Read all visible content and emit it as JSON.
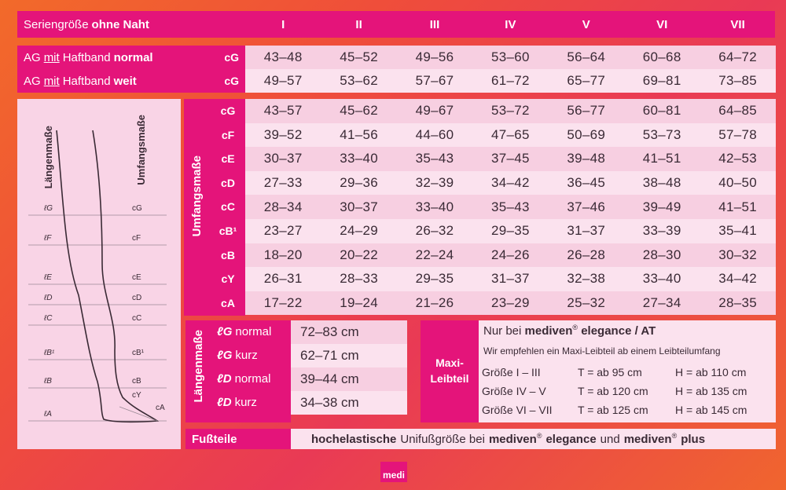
{
  "header": {
    "title_prefix": "Seriengröße",
    "title_bold": "ohne Naht",
    "sizes": [
      "I",
      "II",
      "III",
      "IV",
      "V",
      "VI",
      "VII"
    ]
  },
  "ag_rows": [
    {
      "prefix": "AG",
      "mit": "mit",
      "text": "Haftband",
      "bold": "normal",
      "code": "cG",
      "values": [
        "43–48",
        "45–52",
        "49–56",
        "53–60",
        "56–64",
        "60–68",
        "64–72"
      ]
    },
    {
      "prefix": "AG",
      "mit": "mit",
      "text": "Haftband",
      "bold": "weit",
      "code": "cG",
      "values": [
        "49–57",
        "53–62",
        "57–67",
        "61–72",
        "65–77",
        "69–81",
        "73–85"
      ]
    }
  ],
  "umfang": {
    "label": "Umfangsmaße",
    "rows": [
      {
        "code": "cG",
        "values": [
          "43–57",
          "45–62",
          "49–67",
          "53–72",
          "56–77",
          "60–81",
          "64–85"
        ]
      },
      {
        "code": "cF",
        "values": [
          "39–52",
          "41–56",
          "44–60",
          "47–65",
          "50–69",
          "53–73",
          "57–78"
        ]
      },
      {
        "code": "cE",
        "values": [
          "30–37",
          "33–40",
          "35–43",
          "37–45",
          "39–48",
          "41–51",
          "42–53"
        ]
      },
      {
        "code": "cD",
        "values": [
          "27–33",
          "29–36",
          "32–39",
          "34–42",
          "36–45",
          "38–48",
          "40–50"
        ]
      },
      {
        "code": "cC",
        "values": [
          "28–34",
          "30–37",
          "33–40",
          "35–43",
          "37–46",
          "39–49",
          "41–51"
        ]
      },
      {
        "code": "cB¹",
        "values": [
          "23–27",
          "24–29",
          "26–32",
          "29–35",
          "31–37",
          "33–39",
          "35–41"
        ]
      },
      {
        "code": "cB",
        "values": [
          "18–20",
          "20–22",
          "22–24",
          "24–26",
          "26–28",
          "28–30",
          "30–32"
        ]
      },
      {
        "code": "cY",
        "values": [
          "26–31",
          "28–33",
          "29–35",
          "31–37",
          "32–38",
          "33–40",
          "34–42"
        ]
      },
      {
        "code": "cA",
        "values": [
          "17–22",
          "19–24",
          "21–26",
          "23–29",
          "25–32",
          "27–34",
          "28–35"
        ]
      }
    ]
  },
  "diagram": {
    "left_title": "Längenmaße",
    "right_title": "Umfangsmaße",
    "left_labels": [
      "ℓG",
      "ℓF",
      "ℓE",
      "ℓD",
      "ℓC",
      "ℓB¹",
      "ℓB",
      "ℓA"
    ],
    "right_labels": [
      "cG",
      "cF",
      "cE",
      "cD",
      "cC",
      "cB¹",
      "cB",
      "cY",
      "cA"
    ]
  },
  "laengen": {
    "label": "Längenmaße",
    "rows": [
      {
        "code": "ℓG",
        "type": "normal",
        "value": "72–83 cm"
      },
      {
        "code": "ℓG",
        "type": "kurz",
        "value": "62–71 cm"
      },
      {
        "code": "ℓD",
        "type": "normal",
        "value": "39–44 cm"
      },
      {
        "code": "ℓD",
        "type": "kurz",
        "value": "34–38 cm"
      }
    ]
  },
  "maxi": {
    "label_line1": "Maxi-",
    "label_line2": "Leibteil",
    "title_prefix": "Nur bei",
    "title_brand": "mediven",
    "title_reg": "®",
    "title_suffix": "elegance / AT",
    "note": "Wir empfehlen ein Maxi-Leibteil ab einem Leibteilumfang",
    "rows": [
      {
        "size": "Größe I – III",
        "t": "T = ab  95 cm",
        "h": "H = ab 110 cm"
      },
      {
        "size": "Größe IV – V",
        "t": "T = ab 120 cm",
        "h": "H = ab 135 cm"
      },
      {
        "size": "Größe VI – VII",
        "t": "T = ab 125 cm",
        "h": "H = ab 145 cm"
      }
    ]
  },
  "fuss": {
    "label": "Fußteile",
    "bold1": "hochelastische",
    "text1": "Unifußgröße bei",
    "brand1": "mediven",
    "reg1": "®",
    "bold2": "elegance",
    "text2": "und",
    "brand2": "mediven",
    "reg2": "®",
    "bold3": "plus"
  },
  "logo": "medi",
  "colors": {
    "magenta": "#e4147a",
    "row_light": "#fbe2ee",
    "row_mid": "#f7cfe1"
  }
}
